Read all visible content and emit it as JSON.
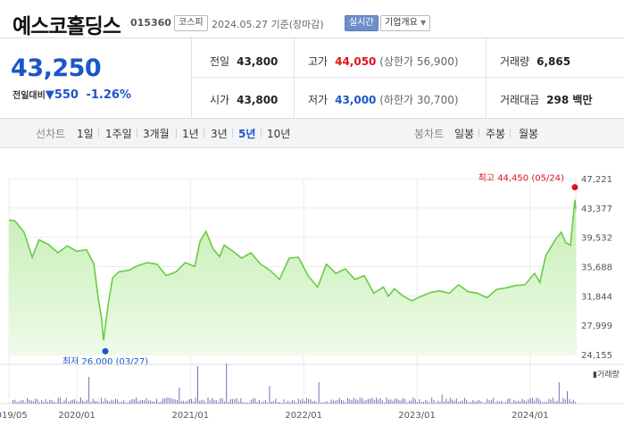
{
  "header": {
    "name": "예스코홀딩스",
    "code": "015360",
    "market": "코스피",
    "date": "2024.05.27",
    "date_suffix": "기준(장마감)",
    "realtime_button": "실시간",
    "company_button": "기업개요"
  },
  "quote": {
    "price": "43,250",
    "change_label": "전일대비",
    "change": "550",
    "change_pct": "-1.26%",
    "prev_close_label": "전일",
    "prev_close": "43,800",
    "open_label": "시가",
    "open": "43,800",
    "high_label": "고가",
    "high": "44,050",
    "upper_limit": "(상한가 56,900)",
    "low_label": "저가",
    "low": "43,000",
    "lower_limit": "(하한가 30,700)",
    "volume_label": "거래량",
    "volume": "6,865",
    "amount_label": "거래대금",
    "amount": "298 백만"
  },
  "colors": {
    "up": "#e0131b",
    "down": "#1a56c9",
    "area_top": "#c4eeb2",
    "area_bottom": "#eefbe8",
    "line": "#68cc45"
  },
  "tabs": {
    "line_label": "선차트",
    "periods": [
      "1일",
      "1주일",
      "3개월",
      "1년",
      "3년",
      "5년",
      "10년"
    ],
    "active_period": "5년",
    "candle_label": "봉차트",
    "candles": [
      "일봉",
      "주봉",
      "월봉"
    ]
  },
  "chart_data": {
    "type": "area",
    "y_ticks": [
      "47,221",
      "43,377",
      "39,532",
      "35,688",
      "31,844",
      "27,999",
      "24,155"
    ],
    "ylim": [
      24155,
      47221
    ],
    "x_ticks": [
      "2019/05",
      "2020/01",
      "2021/01",
      "2022/01",
      "2023/01",
      "2024/01"
    ],
    "x_tick_dates": [
      "2019-05-27",
      "2020-01-01",
      "2021-01-01",
      "2022-01-01",
      "2023-01-01",
      "2024-01-01"
    ],
    "x_range": [
      "2019-05-27",
      "2024-05-27"
    ],
    "max_label": "최고 44,450 (05/24)",
    "min_label": "최저 26,000 (03/27)",
    "max_point": {
      "date": "2024-05-24",
      "value": 44450
    },
    "min_point": {
      "date": "2020-03-27",
      "value": 26000
    },
    "volume_legend": "거래량",
    "series": [
      {
        "x": [
          "2019-05-27",
          "2019-06-15",
          "2019-07-15",
          "2019-08-10",
          "2019-09-01",
          "2019-10-01",
          "2019-11-01",
          "2019-12-01",
          "2020-01-01",
          "2020-02-01",
          "2020-02-25",
          "2020-03-10",
          "2020-03-20",
          "2020-03-27",
          "2020-04-10",
          "2020-04-25",
          "2020-05-15",
          "2020-06-15",
          "2020-07-15",
          "2020-08-15",
          "2020-09-15",
          "2020-10-15",
          "2020-11-15",
          "2020-12-15",
          "2021-01-15",
          "2021-02-01",
          "2021-02-20",
          "2021-03-15",
          "2021-04-05",
          "2021-04-20",
          "2021-05-15",
          "2021-06-15",
          "2021-07-15",
          "2021-08-15",
          "2021-09-15",
          "2021-10-15",
          "2021-11-15",
          "2021-12-15",
          "2022-01-15",
          "2022-02-15",
          "2022-03-15",
          "2022-04-15",
          "2022-05-15",
          "2022-06-15",
          "2022-07-15",
          "2022-08-15",
          "2022-09-15",
          "2022-10-01",
          "2022-10-20",
          "2022-11-15",
          "2022-12-15",
          "2023-01-15",
          "2023-02-15",
          "2023-03-15",
          "2023-04-15",
          "2023-05-15",
          "2023-06-15",
          "2023-07-15",
          "2023-08-15",
          "2023-09-15",
          "2023-10-15",
          "2023-11-15",
          "2023-12-15",
          "2024-01-15",
          "2024-02-01",
          "2024-02-20",
          "2024-03-10",
          "2024-03-25",
          "2024-04-10",
          "2024-04-25",
          "2024-05-10",
          "2024-05-24",
          "2024-05-27"
        ],
        "y": [
          41800,
          41700,
          40200,
          36900,
          39200,
          38600,
          37500,
          38400,
          37700,
          37900,
          36000,
          31500,
          29000,
          26000,
          30500,
          34200,
          35000,
          35200,
          35800,
          36200,
          36000,
          34500,
          35000,
          36200,
          35700,
          39000,
          40300,
          38000,
          37000,
          38500,
          37800,
          36800,
          37500,
          36000,
          35200,
          34000,
          36800,
          36900,
          34500,
          33000,
          36000,
          34800,
          35400,
          34000,
          34500,
          32200,
          33000,
          31800,
          32800,
          31900,
          31200,
          31800,
          32300,
          32500,
          32200,
          33300,
          32400,
          32200,
          31600,
          32700,
          32900,
          33200,
          33300,
          34800,
          33600,
          37100,
          38400,
          39400,
          40200,
          38800,
          38500,
          44450,
          43250
        ]
      }
    ]
  }
}
